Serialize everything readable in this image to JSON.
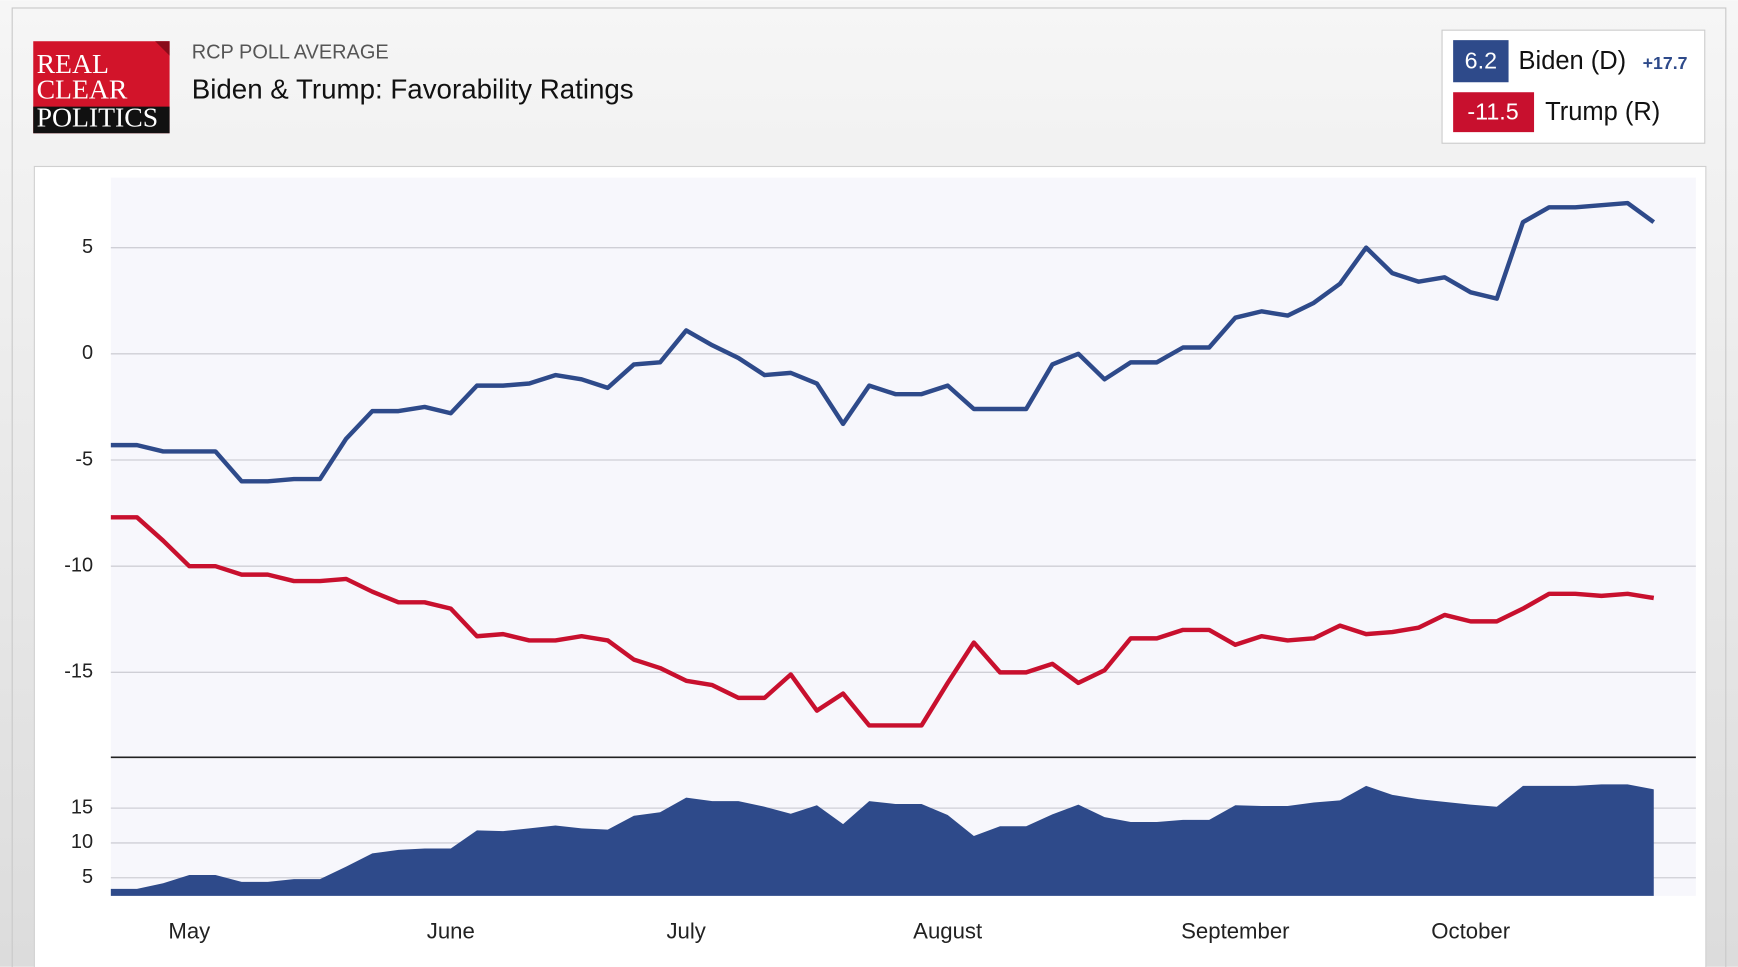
{
  "header": {
    "logo": [
      "REAL",
      "CLEAR",
      "POLITICS"
    ],
    "kicker": "RCP POLL AVERAGE",
    "title": "Biden & Trump: Favorability Ratings"
  },
  "chart_data": [
    {
      "type": "line",
      "categories": [
        null,
        null,
        null,
        "May",
        null,
        null,
        null,
        null,
        null,
        null,
        null,
        null,
        null,
        "June",
        null,
        null,
        null,
        null,
        null,
        null,
        null,
        null,
        "July",
        null,
        null,
        null,
        null,
        null,
        null,
        null,
        null,
        null,
        "August",
        null,
        null,
        null,
        null,
        null,
        null,
        null,
        null,
        null,
        null,
        "September",
        null,
        null,
        null,
        null,
        null,
        null,
        null,
        null,
        "October",
        null,
        null,
        null,
        null,
        null,
        null,
        null
      ],
      "series": [
        {
          "name": "Biden (D)",
          "color": "#2e4a8a",
          "latest": 6.2,
          "values": [
            -4.3,
            -4.3,
            -4.6,
            -4.6,
            -4.6,
            -6.0,
            -6.0,
            -5.9,
            -5.9,
            -4.0,
            -2.7,
            -2.7,
            -2.5,
            -2.8,
            -1.5,
            -1.5,
            -1.4,
            -1.0,
            -1.2,
            -1.6,
            -0.5,
            -0.4,
            1.1,
            0.4,
            -0.2,
            -1.0,
            -0.9,
            -1.4,
            -3.3,
            -1.5,
            -1.9,
            -1.9,
            -1.5,
            -2.6,
            -2.6,
            -2.6,
            -0.5,
            0.0,
            -1.2,
            -0.4,
            -0.4,
            0.3,
            0.3,
            1.7,
            2.0,
            1.8,
            2.4,
            3.3,
            5.0,
            3.8,
            3.4,
            3.6,
            2.9,
            2.6,
            6.2,
            6.9,
            6.9,
            7.0,
            7.1,
            6.2
          ]
        },
        {
          "name": "Trump (R)",
          "color": "#c8102e",
          "latest": -11.5,
          "values": [
            -7.7,
            -7.7,
            -8.8,
            -10.0,
            -10.0,
            -10.4,
            -10.4,
            -10.7,
            -10.7,
            -10.6,
            -11.2,
            -11.7,
            -11.7,
            -12.0,
            -13.3,
            -13.2,
            -13.5,
            -13.5,
            -13.3,
            -13.5,
            -14.4,
            -14.8,
            -15.4,
            -15.6,
            -16.2,
            -16.2,
            -15.1,
            -16.8,
            -16.0,
            -17.5,
            -17.5,
            -17.5,
            -15.5,
            -13.6,
            -15.0,
            -15.0,
            -14.6,
            -15.5,
            -14.9,
            -13.4,
            -13.4,
            -13.0,
            -13.0,
            -13.7,
            -13.3,
            -13.5,
            -13.4,
            -12.8,
            -13.2,
            -13.1,
            -12.9,
            -12.3,
            -12.6,
            -12.6,
            -12.0,
            -11.3,
            -11.3,
            -11.4,
            -11.3,
            -11.5
          ]
        }
      ],
      "ylim": [
        -19,
        8.3
      ],
      "yticks": [
        5,
        0,
        -5,
        -10,
        -15
      ],
      "grid": true
    },
    {
      "type": "area",
      "color": "#2e4a8a",
      "latest": 17.7,
      "latest_label": "+17.7",
      "values": [
        3.4,
        3.4,
        4.2,
        5.4,
        5.4,
        4.4,
        4.4,
        4.8,
        4.8,
        6.6,
        8.5,
        9.0,
        9.2,
        9.2,
        11.8,
        11.7,
        12.1,
        12.5,
        12.1,
        11.9,
        13.9,
        14.4,
        16.5,
        16.0,
        16.0,
        15.2,
        14.2,
        15.4,
        12.7,
        16.0,
        15.6,
        15.6,
        14.0,
        11.0,
        12.4,
        12.4,
        14.1,
        15.5,
        13.7,
        13.0,
        13.0,
        13.3,
        13.3,
        15.4,
        15.3,
        15.3,
        15.8,
        16.1,
        18.2,
        16.9,
        16.3,
        15.9,
        15.5,
        15.2,
        18.2,
        18.2,
        18.2,
        18.4,
        18.4,
        17.7
      ],
      "ylim": [
        2.4,
        22.3
      ],
      "yticks": [
        5,
        10,
        15
      ],
      "grid": true
    }
  ]
}
